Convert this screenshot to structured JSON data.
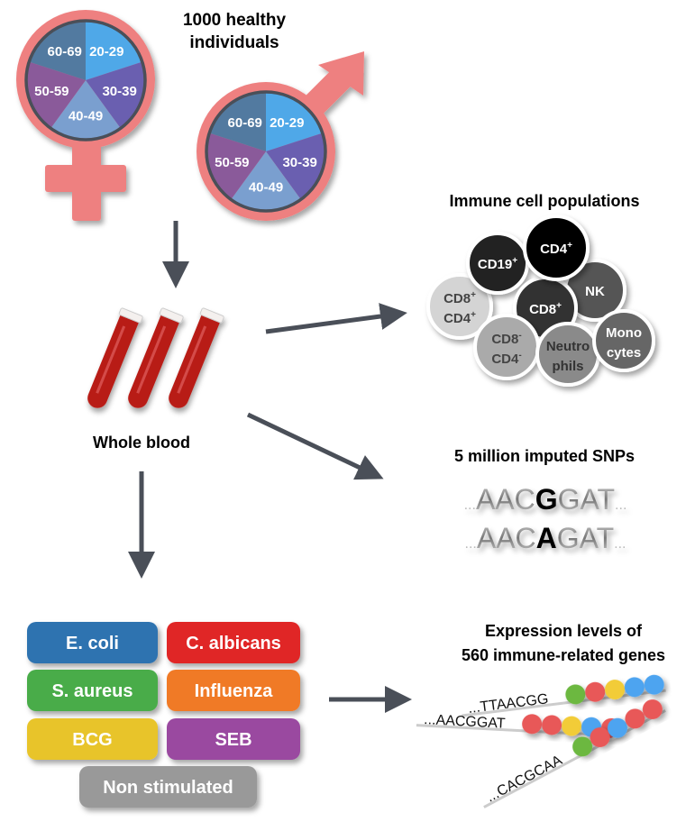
{
  "cohort": {
    "title_line1": "1000 healthy",
    "title_line2": "individuals",
    "age_groups": [
      "20-29",
      "30-39",
      "40-49",
      "50-59",
      "60-69"
    ],
    "age_colors": [
      "#4fa8e8",
      "#6a5fb0",
      "#7a9fcf",
      "#8a5a9a",
      "#527aa0"
    ],
    "symbol_color": "#ee8080",
    "symbols": [
      "female-symbol",
      "male-symbol"
    ]
  },
  "blood": {
    "label": "Whole blood",
    "tube_color": "#b81c18"
  },
  "arrow_color": "#4a4f58",
  "immune_cells": {
    "title": "Immune cell populations",
    "cells": [
      {
        "label": [
          "CD19",
          "+"
        ],
        "color": "#222222",
        "text_color": "#ffffff"
      },
      {
        "label": [
          "CD4",
          "+"
        ],
        "color": "#000000",
        "text_color": "#ffffff"
      },
      {
        "label": [
          "NK",
          ""
        ],
        "color": "#555555",
        "text_color": "#ffffff"
      },
      {
        "label": [
          "CD8",
          "+"
        ],
        "color": "#333333",
        "text_color": "#ffffff"
      },
      {
        "label": [
          "CD8",
          "+",
          "CD4",
          "+"
        ],
        "color": "#d4d4d4",
        "text_color": "#444444"
      },
      {
        "label": [
          "CD8",
          "-",
          "CD4",
          "-"
        ],
        "color": "#aaaaaa",
        "text_color": "#444444"
      },
      {
        "label": [
          "Neutro",
          "phils"
        ],
        "color": "#8a8a8a",
        "text_color": "#333333"
      },
      {
        "label": [
          "Mono",
          "cytes"
        ],
        "color": "#666666",
        "text_color": "#ffffff"
      }
    ]
  },
  "snps": {
    "title": "5 million imputed SNPs",
    "seq1": {
      "left": "AAC",
      "variant": "G",
      "right": "GAT"
    },
    "seq2": {
      "left": "AAC",
      "variant": "A",
      "right": "GAT"
    },
    "ellipsis": "..."
  },
  "stimuli": [
    {
      "label": "E. coli",
      "color": "#2f73b0"
    },
    {
      "label": "C. albicans",
      "color": "#e02828"
    },
    {
      "label": "S. aureus",
      "color": "#4aac4a"
    },
    {
      "label": "Influenza",
      "color": "#f07a28"
    },
    {
      "label": "BCG",
      "color": "#e8c42a"
    },
    {
      "label": "SEB",
      "color": "#9a4aa0"
    },
    {
      "label": "Non stimulated",
      "color": "#999999"
    }
  ],
  "expression": {
    "title_line1": "Expression levels of",
    "title_line2": "560 immune-related genes",
    "rows": [
      {
        "seq": "...TTAACGG",
        "beads": [
          "#6cb840",
          "#e85858",
          "#f2cc38",
          "#4ea4f0",
          "#4ea4f0"
        ]
      },
      {
        "seq": "...AACGGAT",
        "beads": [
          "#e85858",
          "#e85858",
          "#f2cc38",
          "#4ea4f0",
          "#e85858"
        ]
      },
      {
        "seq": "...CACGCAA",
        "beads": [
          "#6cb840",
          "#e85858",
          "#4ea4f0",
          "#e85858",
          "#e85858"
        ]
      }
    ]
  }
}
